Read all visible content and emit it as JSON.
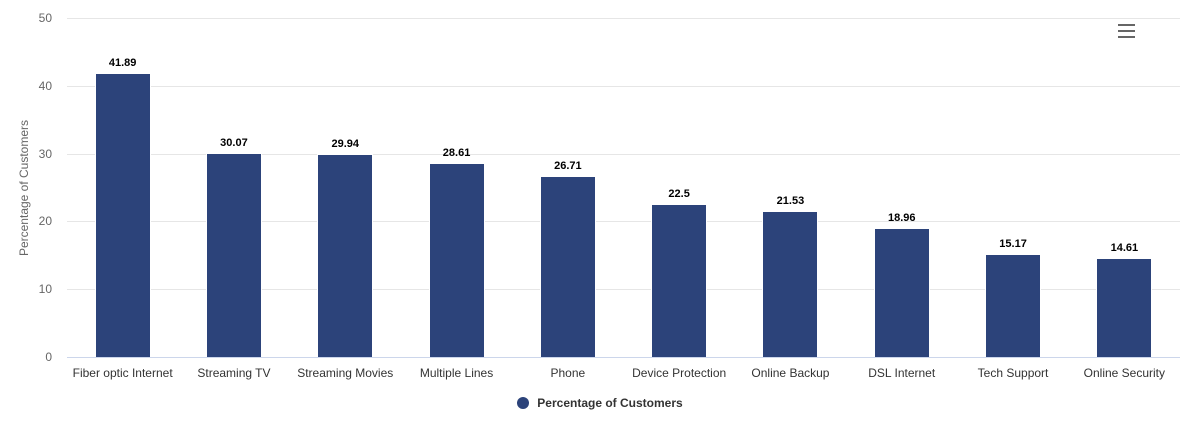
{
  "chart_data": {
    "type": "bar",
    "title": "",
    "xlabel": "",
    "ylabel": "Percentage of Customers",
    "ylim": [
      0,
      50
    ],
    "yticks": [
      0,
      10,
      20,
      30,
      40,
      50
    ],
    "grid": true,
    "legend_position": "bottom",
    "categories": [
      "Fiber optic Internet",
      "Streaming TV",
      "Streaming Movies",
      "Multiple Lines",
      "Phone",
      "Device Protection",
      "Online Backup",
      "DSL Internet",
      "Tech Support",
      "Online Security"
    ],
    "series": [
      {
        "name": "Percentage of Customers",
        "color": "#2c437a",
        "values": [
          41.89,
          30.07,
          29.94,
          28.61,
          26.71,
          22.5,
          21.53,
          18.96,
          15.17,
          14.61
        ]
      }
    ]
  },
  "menu": {
    "icon": "hamburger-menu-icon"
  }
}
